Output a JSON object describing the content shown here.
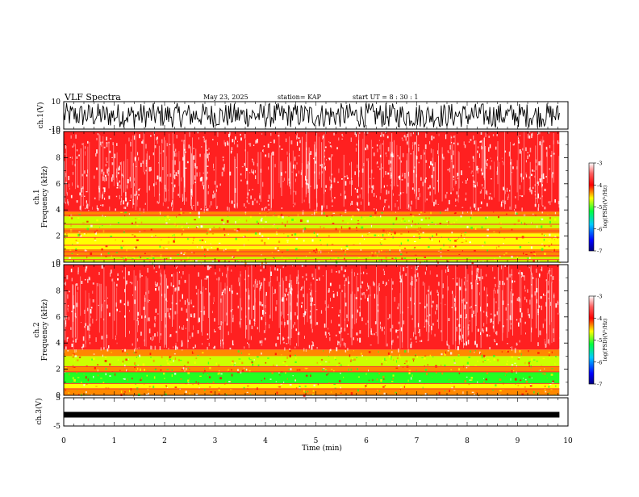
{
  "chart_data": {
    "type": "heatmap",
    "header": {
      "title": "VLF Spectra",
      "date": "May 23, 2025",
      "station": "station= KAP",
      "start": "start  UT =  8 : 30 : 1"
    },
    "x": {
      "label": "Time (min)",
      "range": [
        0,
        10
      ],
      "ticks": [
        "0",
        "1",
        "2",
        "3",
        "4",
        "5",
        "6",
        "7",
        "8",
        "9",
        "10"
      ],
      "data_end": 9.83
    },
    "panels": [
      {
        "id": "ch1-waveform",
        "type": "line",
        "ylabel": "ch.1(V)",
        "yrange": [
          -10,
          10
        ],
        "ticks": [
          "10",
          "-10"
        ],
        "amplitude_low": -9,
        "amplitude_high": 9
      },
      {
        "id": "ch1-spectrogram",
        "type": "heatmap",
        "ylabel_top": "ch.1",
        "ylabel_bottom": "Frequency (kHz)",
        "yrange": [
          0,
          10
        ],
        "ticks": [
          "0",
          "2",
          "4",
          "6",
          "8",
          "10"
        ],
        "colorbar": {
          "label": "log(PSD)(V²/Hz)",
          "ticks": [
            "-3",
            "-4",
            "-5",
            "-6",
            "-7"
          ],
          "range": [
            -7,
            -3
          ]
        },
        "bands": [
          {
            "from": 0.0,
            "to": 0.4,
            "level": -5.0
          },
          {
            "from": 0.4,
            "to": 1.0,
            "level": -4.3
          },
          {
            "from": 1.0,
            "to": 2.2,
            "level": -4.7
          },
          {
            "from": 2.2,
            "to": 2.6,
            "level": -4.2
          },
          {
            "from": 2.6,
            "to": 3.5,
            "level": -4.9
          },
          {
            "from": 3.5,
            "to": 3.9,
            "level": -4.2
          },
          {
            "from": 3.9,
            "to": 10.0,
            "level": -3.5
          }
        ],
        "lines_khz": [
          0.2,
          0.5,
          0.8,
          1.3,
          1.9,
          2.4,
          2.9,
          3.6,
          3.9
        ]
      },
      {
        "id": "ch2-spectrogram",
        "type": "heatmap",
        "ylabel_top": "ch.2",
        "ylabel_bottom": "Frequency (kHz)",
        "yrange": [
          0,
          10
        ],
        "ticks": [
          "0",
          "2",
          "4",
          "6",
          "8",
          "10"
        ],
        "colorbar": {
          "label": "log(PSD)(V²/Hz)",
          "ticks": [
            "-3",
            "-4",
            "-5",
            "-6",
            "-7"
          ],
          "range": [
            -7,
            -3
          ]
        },
        "bands": [
          {
            "from": 0.0,
            "to": 0.5,
            "level": -4.3
          },
          {
            "from": 0.5,
            "to": 0.9,
            "level": -4.6
          },
          {
            "from": 0.9,
            "to": 1.8,
            "level": -5.3
          },
          {
            "from": 1.8,
            "to": 2.2,
            "level": -4.3
          },
          {
            "from": 2.2,
            "to": 3.0,
            "level": -4.9
          },
          {
            "from": 3.0,
            "to": 3.5,
            "level": -4.2
          },
          {
            "from": 3.5,
            "to": 10.0,
            "level": -3.5
          }
        ],
        "lines_khz": [
          0.5,
          0.9,
          1.8,
          2.2
        ]
      },
      {
        "id": "ch3-waveform",
        "type": "line",
        "ylabel": "ch.3(V)",
        "yrange": [
          -5,
          5
        ],
        "ticks": [
          "5",
          "-5"
        ],
        "level": -1,
        "thickness": 1
      }
    ]
  }
}
